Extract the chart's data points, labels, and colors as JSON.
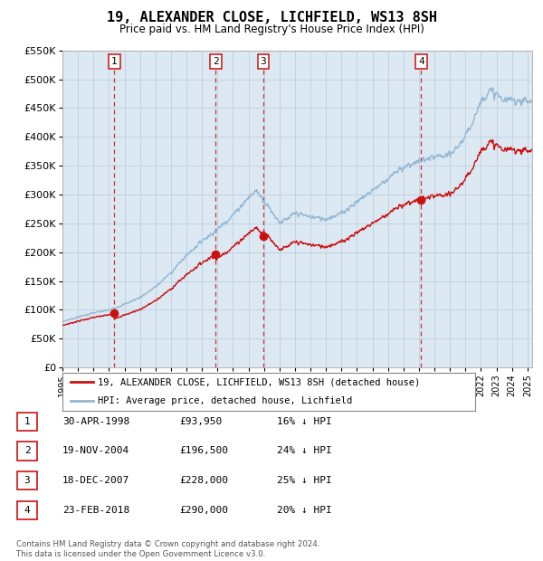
{
  "title": "19, ALEXANDER CLOSE, LICHFIELD, WS13 8SH",
  "subtitle": "Price paid vs. HM Land Registry's House Price Index (HPI)",
  "xlim": [
    1995.0,
    2025.3
  ],
  "ylim": [
    0,
    550000
  ],
  "yticks": [
    0,
    50000,
    100000,
    150000,
    200000,
    250000,
    300000,
    350000,
    400000,
    450000,
    500000,
    550000
  ],
  "ytick_labels": [
    "£0",
    "£50K",
    "£100K",
    "£150K",
    "£200K",
    "£250K",
    "£300K",
    "£350K",
    "£400K",
    "£450K",
    "£500K",
    "£550K"
  ],
  "xticks": [
    1995,
    1996,
    1997,
    1998,
    1999,
    2000,
    2001,
    2002,
    2003,
    2004,
    2005,
    2006,
    2007,
    2008,
    2009,
    2010,
    2011,
    2012,
    2013,
    2014,
    2015,
    2016,
    2017,
    2018,
    2019,
    2020,
    2021,
    2022,
    2023,
    2024,
    2025
  ],
  "hpi_color": "#94b8d4",
  "price_color": "#cc1111",
  "vline_color": "#cc1111",
  "grid_color": "#c0d4e4",
  "background_color": "#dce8f2",
  "sale_points": [
    {
      "year": 1998.33,
      "price": 93950,
      "label": "1"
    },
    {
      "year": 2004.89,
      "price": 196500,
      "label": "2"
    },
    {
      "year": 2007.96,
      "price": 228000,
      "label": "3"
    },
    {
      "year": 2018.14,
      "price": 290000,
      "label": "4"
    }
  ],
  "legend_line1": "19, ALEXANDER CLOSE, LICHFIELD, WS13 8SH (detached house)",
  "legend_line2": "HPI: Average price, detached house, Lichfield",
  "legend_color1": "#cc1111",
  "legend_color2": "#94b8d4",
  "table_rows": [
    {
      "num": "1",
      "date": "30-APR-1998",
      "price": "£93,950",
      "hpi": "16% ↓ HPI"
    },
    {
      "num": "2",
      "date": "19-NOV-2004",
      "price": "£196,500",
      "hpi": "24% ↓ HPI"
    },
    {
      "num": "3",
      "date": "18-DEC-2007",
      "price": "£228,000",
      "hpi": "25% ↓ HPI"
    },
    {
      "num": "4",
      "date": "23-FEB-2018",
      "price": "£290,000",
      "hpi": "20% ↓ HPI"
    }
  ],
  "footer": "Contains HM Land Registry data © Crown copyright and database right 2024.\nThis data is licensed under the Open Government Licence v3.0."
}
